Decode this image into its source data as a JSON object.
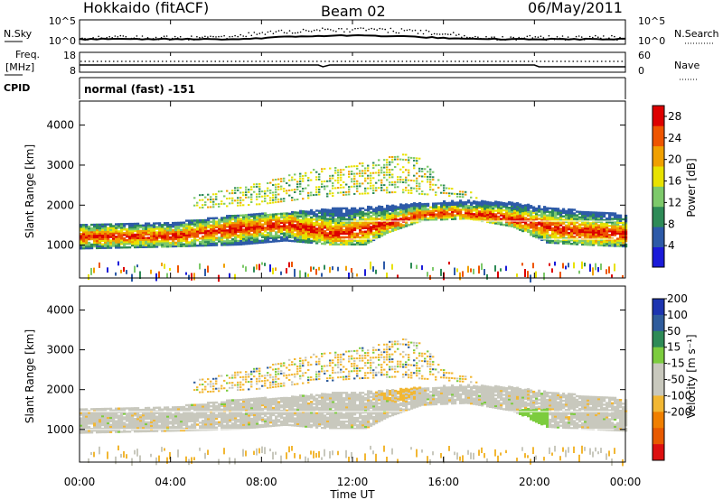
{
  "header": {
    "station": "Hokkaido (fitACF)",
    "beam": "Beam 02",
    "date": "06/May/2011"
  },
  "noise_panel": {
    "left_label": "N.Sky",
    "right_label": "N.Search",
    "left_ticks": [
      "10^5",
      "10^0"
    ],
    "right_ticks": [
      "10^5",
      "10^0"
    ]
  },
  "freq_panel": {
    "left_label_top": "Freq.",
    "left_label_unit": "[MHz]",
    "right_label": "Nave",
    "left_ticks": [
      "18",
      "8"
    ],
    "right_ticks": [
      "60",
      "0"
    ]
  },
  "cpid": {
    "label": "CPID",
    "value": "normal (fast) -151"
  },
  "colors": {
    "power": [
      "#1b1bd9",
      "#2d5aa8",
      "#2e8b57",
      "#7dc96a",
      "#e8e200",
      "#f0a000",
      "#ee5500",
      "#dd0000"
    ],
    "velocity_neg": [
      "#c8c8bd",
      "#f2b733",
      "#f07f00",
      "#e85a00",
      "#dd1010"
    ],
    "velocity_pos": [
      "#c8c8bd",
      "#7ccc3e",
      "#2e8b57",
      "#2f5c9c",
      "#1d34b0"
    ],
    "ground_scatter": "#c8c8bd"
  },
  "chart_data": [
    {
      "type": "heatmap",
      "name": "power",
      "ylabel": "Slant Range [km]",
      "yticks": [
        "1000",
        "2000",
        "3000",
        "4000"
      ],
      "ylim": [
        180,
        4600
      ],
      "xlim": [
        0,
        24
      ],
      "colorbar": {
        "label": "Power [dB]",
        "ticks": [
          "4",
          "8",
          "12",
          "16",
          "20",
          "24",
          "28"
        ],
        "range": [
          0,
          30
        ]
      }
    },
    {
      "type": "heatmap",
      "name": "velocity",
      "ylabel": "Slant Range [km]",
      "yticks": [
        "1000",
        "2000",
        "3000",
        "4000"
      ],
      "ylim": [
        180,
        4600
      ],
      "xlim": [
        0,
        24
      ],
      "colorbar": {
        "label": "Velocity [m s⁻¹]",
        "ticks": [
          "200",
          "100",
          "50",
          "15",
          "-15",
          "-50",
          "-100",
          "-200"
        ]
      }
    }
  ],
  "time_axis": {
    "label": "Time UT",
    "ticks": [
      "00:00",
      "04:00",
      "08:00",
      "12:00",
      "16:00",
      "20:00",
      "00:00"
    ],
    "tick_hours": [
      0,
      4,
      8,
      12,
      16,
      20,
      24
    ]
  }
}
